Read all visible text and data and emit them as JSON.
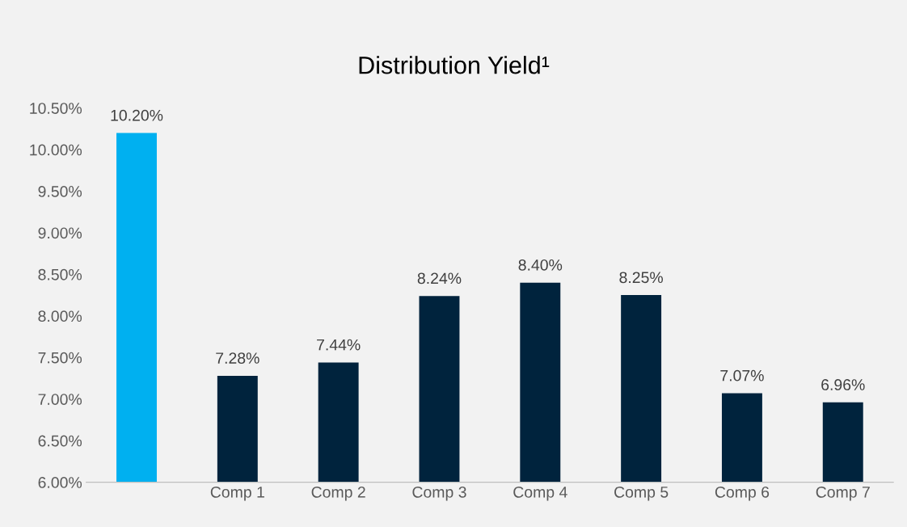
{
  "chart_data": {
    "type": "bar",
    "title": "Distribution Yield¹",
    "categories": [
      null,
      "Comp 1",
      "Comp 2",
      "Comp 3",
      "Comp 4",
      "Comp 5",
      "Comp 6",
      "Comp 7"
    ],
    "values": [
      10.2,
      7.28,
      7.44,
      8.24,
      8.4,
      8.25,
      7.07,
      6.96
    ],
    "colors": [
      "#00b0f0",
      "#00233d",
      "#00233d",
      "#00233d",
      "#00233d",
      "#00233d",
      "#00233d",
      "#00233d"
    ],
    "value_labels": [
      "10.20%",
      "7.28%",
      "7.44%",
      "8.24%",
      "8.40%",
      "8.25%",
      "7.07%",
      "6.96%"
    ],
    "ylim": [
      6,
      10.5
    ],
    "yticks": [
      {
        "value": 6,
        "label": "6.00%"
      },
      {
        "value": 6.5,
        "label": "6.50%"
      },
      {
        "value": 7,
        "label": "7.00%"
      },
      {
        "value": 7.5,
        "label": "7.50%"
      },
      {
        "value": 8,
        "label": "8.00%"
      },
      {
        "value": 8.5,
        "label": "8.50%"
      },
      {
        "value": 9,
        "label": "9.00%"
      },
      {
        "value": 9.5,
        "label": "9.50%"
      },
      {
        "value": 10,
        "label": "10.00%"
      },
      {
        "value": 10.5,
        "label": "10.50%"
      }
    ],
    "grid": false
  }
}
